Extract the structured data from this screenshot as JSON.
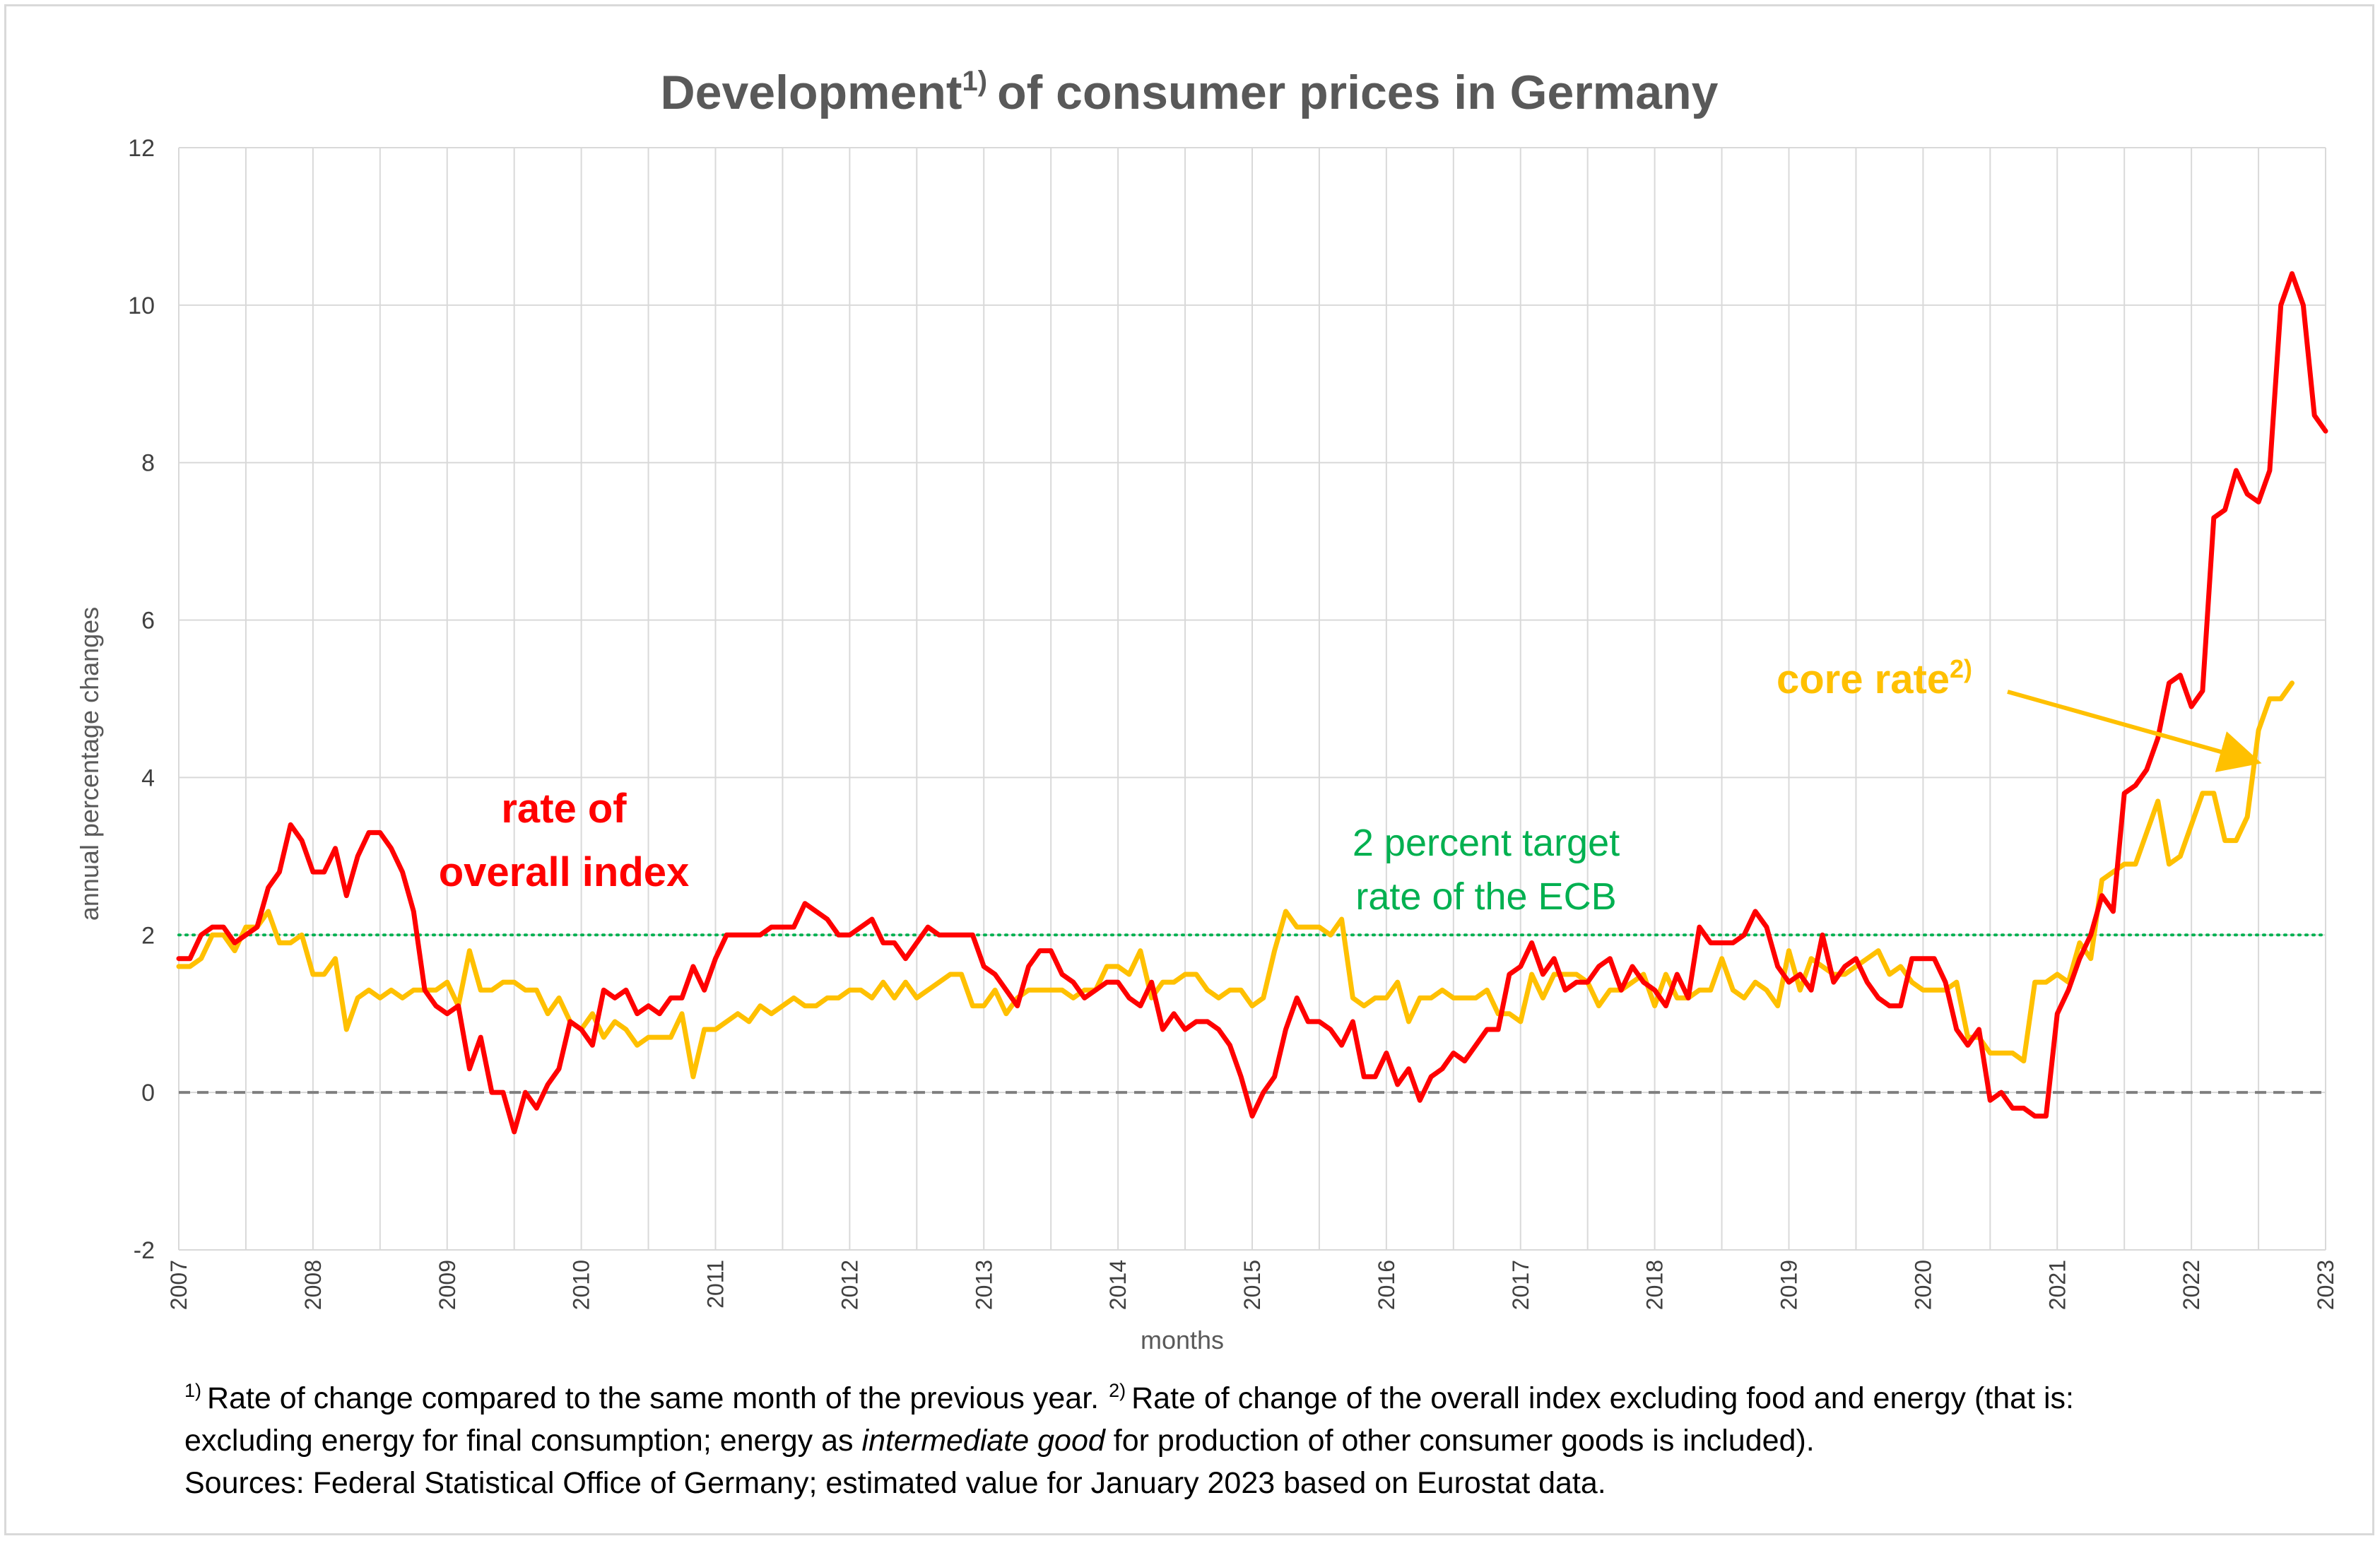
{
  "title": {
    "main": "Development",
    "sup": "1)",
    "rest": "of consumer prices in Germany"
  },
  "footnotes": {
    "line1_sup1": "1)",
    "line1_a": "Rate of change compared to the same month of the previous year.",
    "line1_sup2": "2)",
    "line1_b": "Rate of change of the overall index excluding food and energy (that is:",
    "line2_a": "excluding energy for final consumption; energy as",
    "line2_italic": "intermediate good",
    "line2_b": "for production of other consumer goods is included).",
    "line3": "Sources: Federal Statistical Office of Germany; estimated value for January 2023 based on Eurostat data."
  },
  "annotations": {
    "overall_line1": "rate of",
    "overall_line2": "overall index",
    "target_line1": "2 percent target",
    "target_line2": "rate of the ECB",
    "core_label": "core rate",
    "core_sup": "2)"
  },
  "colors": {
    "overall": "#ff0000",
    "core": "#ffc000",
    "target": "#00b050",
    "zero": "#7f7f7f",
    "grid": "#d9d9d9"
  },
  "chart_data": {
    "type": "line",
    "title": "Development1) of consumer prices in Germany",
    "xlabel": "months",
    "ylabel": "annual percentage changes",
    "ylim": [
      -2,
      12
    ],
    "yticks": [
      -2,
      0,
      2,
      4,
      6,
      8,
      10,
      12
    ],
    "xticks": [
      "2007",
      "2008",
      "2009",
      "2010",
      "2011",
      "2012",
      "2013",
      "2014",
      "2015",
      "2016",
      "2017",
      "2018",
      "2019",
      "2020",
      "2021",
      "2022",
      "2023"
    ],
    "x_start": "2007-01",
    "x_frequency": "monthly",
    "grid": true,
    "reference_lines": [
      {
        "value": 2,
        "style": "dotted",
        "label": "2 percent target rate of the ECB"
      },
      {
        "value": 0,
        "style": "dashed"
      }
    ],
    "series": [
      {
        "name": "rate of overall index",
        "values": [
          1.7,
          1.7,
          2.0,
          2.1,
          2.1,
          1.9,
          2.0,
          2.1,
          2.6,
          2.8,
          3.4,
          3.2,
          2.8,
          2.8,
          3.1,
          2.5,
          3.0,
          3.3,
          3.3,
          3.1,
          2.8,
          2.3,
          1.3,
          1.1,
          1.0,
          1.1,
          0.3,
          0.7,
          0.0,
          0.0,
          -0.5,
          0.0,
          -0.2,
          0.1,
          0.3,
          0.9,
          0.8,
          0.6,
          1.3,
          1.2,
          1.3,
          1.0,
          1.1,
          1.0,
          1.2,
          1.2,
          1.6,
          1.3,
          1.7,
          2.0,
          2.0,
          2.0,
          2.0,
          2.1,
          2.1,
          2.1,
          2.4,
          2.3,
          2.2,
          2.0,
          2.0,
          2.1,
          2.2,
          1.9,
          1.9,
          1.7,
          1.9,
          2.1,
          2.0,
          2.0,
          2.0,
          2.0,
          1.6,
          1.5,
          1.3,
          1.1,
          1.6,
          1.8,
          1.8,
          1.5,
          1.4,
          1.2,
          1.3,
          1.4,
          1.4,
          1.2,
          1.1,
          1.4,
          0.8,
          1.0,
          0.8,
          0.9,
          0.9,
          0.8,
          0.6,
          0.2,
          -0.3,
          0.0,
          0.2,
          0.8,
          1.2,
          0.9,
          0.9,
          0.8,
          0.6,
          0.9,
          0.2,
          0.2,
          0.5,
          0.1,
          0.3,
          -0.1,
          0.2,
          0.3,
          0.5,
          0.4,
          0.6,
          0.8,
          0.8,
          1.5,
          1.6,
          1.9,
          1.5,
          1.7,
          1.3,
          1.4,
          1.4,
          1.6,
          1.7,
          1.3,
          1.6,
          1.4,
          1.3,
          1.1,
          1.5,
          1.2,
          2.1,
          1.9,
          1.9,
          1.9,
          2.0,
          2.3,
          2.1,
          1.6,
          1.4,
          1.5,
          1.3,
          2.0,
          1.4,
          1.6,
          1.7,
          1.4,
          1.2,
          1.1,
          1.1,
          1.7,
          1.7,
          1.7,
          1.4,
          0.8,
          0.6,
          0.8,
          -0.1,
          0.0,
          -0.2,
          -0.2,
          -0.3,
          -0.3,
          1.0,
          1.3,
          1.7,
          2.0,
          2.5,
          2.3,
          3.8,
          3.9,
          4.1,
          4.5,
          5.2,
          5.3,
          4.9,
          5.1,
          7.3,
          7.4,
          7.9,
          7.6,
          7.5,
          7.9,
          10.0,
          10.4,
          10.0,
          8.6,
          8.4
        ]
      },
      {
        "name": "core rate",
        "values": [
          1.6,
          1.6,
          1.7,
          2.0,
          2.0,
          1.8,
          2.1,
          2.1,
          2.3,
          1.9,
          1.9,
          2.0,
          1.5,
          1.5,
          1.7,
          0.8,
          1.2,
          1.3,
          1.2,
          1.3,
          1.2,
          1.3,
          1.3,
          1.3,
          1.4,
          1.1,
          1.8,
          1.3,
          1.3,
          1.4,
          1.4,
          1.3,
          1.3,
          1.0,
          1.2,
          0.9,
          0.8,
          1.0,
          0.7,
          0.9,
          0.8,
          0.6,
          0.7,
          0.7,
          0.7,
          1.0,
          0.2,
          0.8,
          0.8,
          0.9,
          1.0,
          0.9,
          1.1,
          1.0,
          1.1,
          1.2,
          1.1,
          1.1,
          1.2,
          1.2,
          1.3,
          1.3,
          1.2,
          1.4,
          1.2,
          1.4,
          1.2,
          1.3,
          1.4,
          1.5,
          1.5,
          1.1,
          1.1,
          1.3,
          1.0,
          1.2,
          1.3,
          1.3,
          1.3,
          1.3,
          1.2,
          1.3,
          1.3,
          1.6,
          1.6,
          1.5,
          1.8,
          1.2,
          1.4,
          1.4,
          1.5,
          1.5,
          1.3,
          1.2,
          1.3,
          1.3,
          1.1,
          1.2,
          1.8,
          2.3,
          2.1,
          2.1,
          2.1,
          2.0,
          2.2,
          1.2,
          1.1,
          1.2,
          1.2,
          1.4,
          0.9,
          1.2,
          1.2,
          1.3,
          1.2,
          1.2,
          1.2,
          1.3,
          1.0,
          1.0,
          0.9,
          1.5,
          1.2,
          1.5,
          1.5,
          1.5,
          1.4,
          1.1,
          1.3,
          1.3,
          1.4,
          1.5,
          1.1,
          1.5,
          1.2,
          1.2,
          1.3,
          1.3,
          1.7,
          1.3,
          1.2,
          1.4,
          1.3,
          1.1,
          1.8,
          1.3,
          1.7,
          1.6,
          1.5,
          1.5,
          1.6,
          1.7,
          1.8,
          1.5,
          1.6,
          1.4,
          1.3,
          1.3,
          1.3,
          1.4,
          0.7,
          0.7,
          0.5,
          0.5,
          0.5,
          0.4,
          1.4,
          1.4,
          1.5,
          1.4,
          1.9,
          1.7,
          2.7,
          2.8,
          2.9,
          2.9,
          3.3,
          3.7,
          2.9,
          3.0,
          3.4,
          3.8,
          3.8,
          3.2,
          3.2,
          3.5,
          4.6,
          5.0,
          5.0,
          5.2
        ]
      }
    ]
  }
}
